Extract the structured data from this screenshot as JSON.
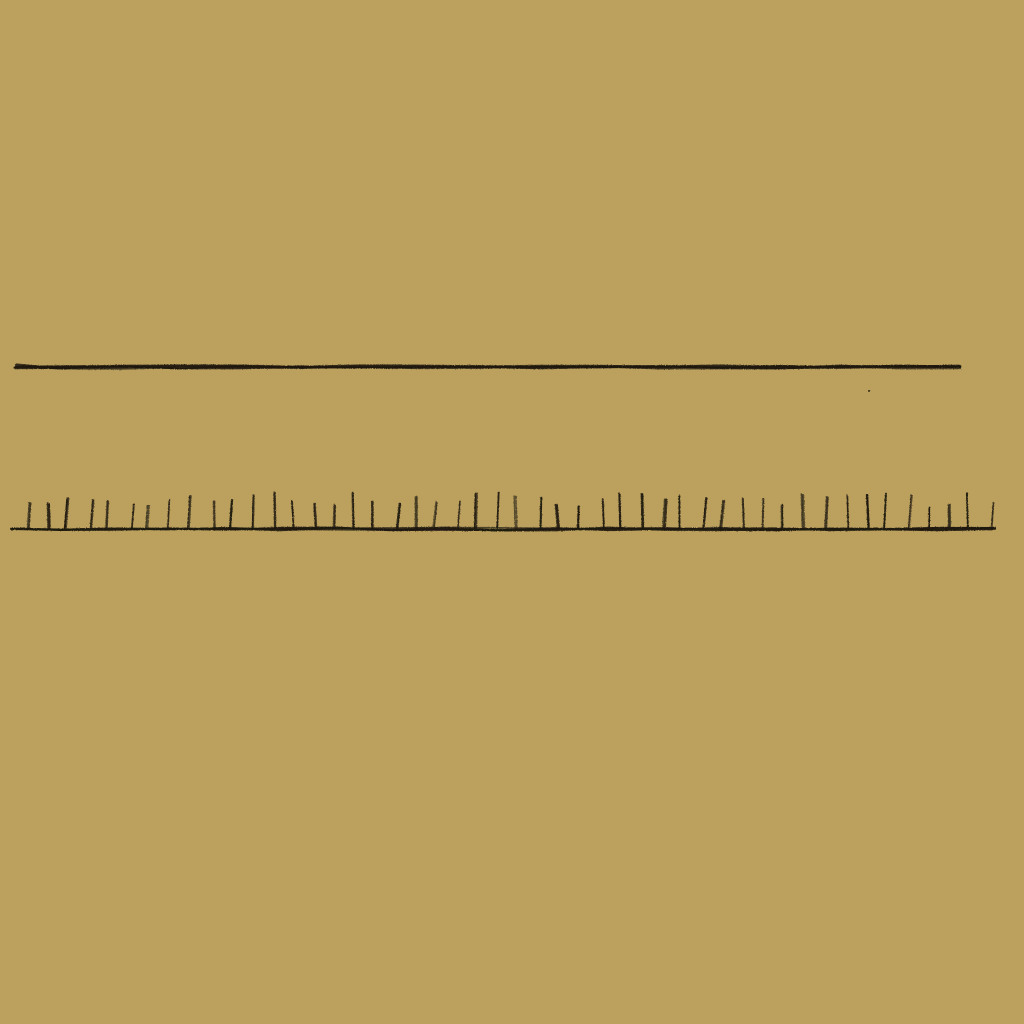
{
  "canvas": {
    "background_color": "#bba05e",
    "ink_color": "#1f1a12"
  },
  "drawing": {
    "subject": "hand-drawn-pencil-lines",
    "elements": [
      {
        "name": "upper-line",
        "style": "solid-heavy-stroke"
      },
      {
        "name": "tick-ruler",
        "style": "baseline-with-vertical-hatch-ticks",
        "tick_count": 48
      }
    ]
  }
}
